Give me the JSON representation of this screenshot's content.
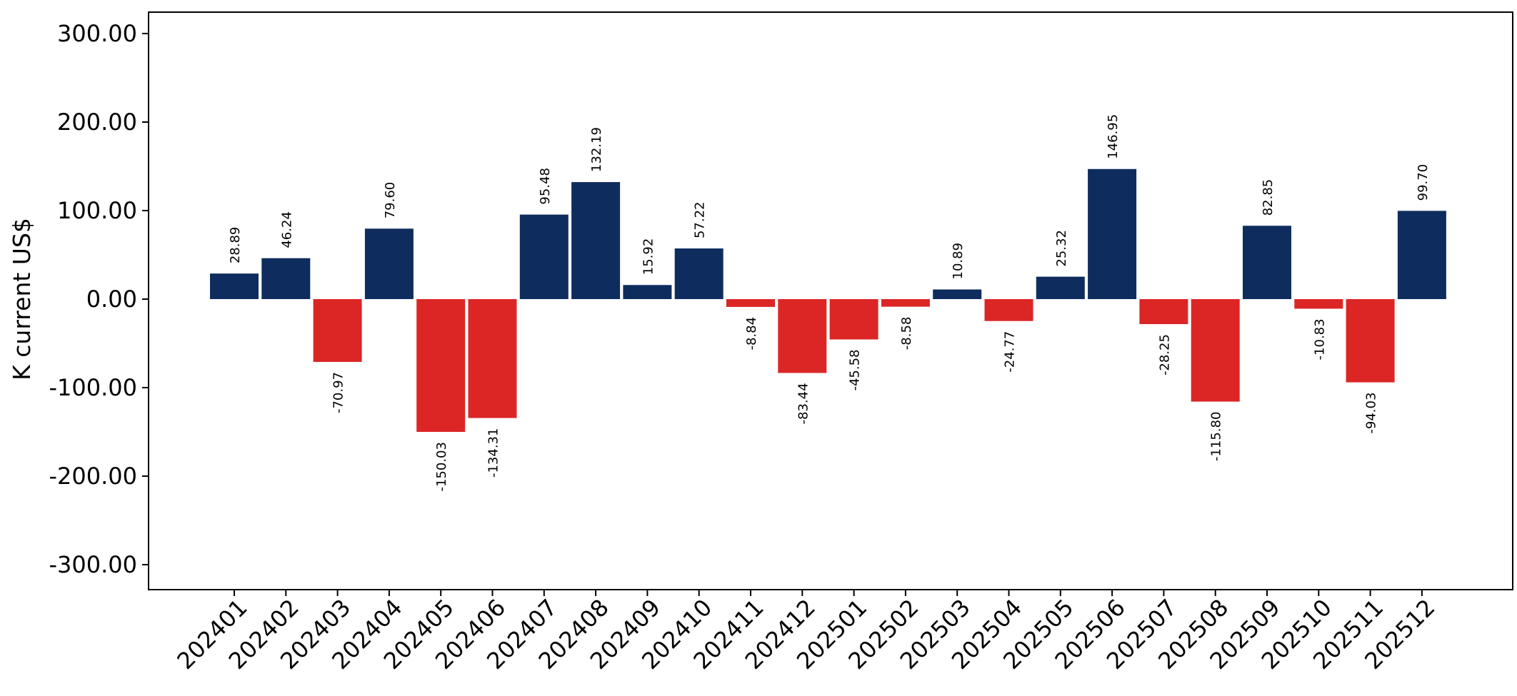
{
  "chart_data": {
    "type": "bar",
    "title": "",
    "xlabel": "",
    "ylabel": "K current US$",
    "ylim": [
      -326,
      326
    ],
    "yticks": [
      300,
      200,
      100,
      0,
      -100,
      -200,
      -300
    ],
    "ytick_labels": [
      "300.00",
      "200.00",
      "100.00",
      "0.00",
      "-100.00",
      "-200.00",
      "-300.00"
    ],
    "categories": [
      "202401",
      "202402",
      "202403",
      "202404",
      "202405",
      "202406",
      "202407",
      "202408",
      "202409",
      "202410",
      "202411",
      "202412",
      "202501",
      "202502",
      "202503",
      "202504",
      "202505",
      "202506",
      "202507",
      "202508",
      "202509",
      "202510",
      "202511",
      "202512"
    ],
    "values": [
      28.89,
      46.24,
      -70.97,
      79.6,
      -150.03,
      -134.31,
      95.48,
      132.19,
      15.92,
      57.22,
      -8.84,
      -83.44,
      -45.58,
      -8.58,
      10.89,
      -24.77,
      25.32,
      146.95,
      -28.25,
      -115.8,
      82.85,
      -10.83,
      -94.03,
      99.7
    ],
    "value_labels": [
      "28.89",
      "46.24",
      "-70.97",
      "79.60",
      "-150.03",
      "-134.31",
      "95.48",
      "132.19",
      "15.92",
      "57.22",
      "-8.84",
      "-83.44",
      "-45.58",
      "-8.58",
      "10.89",
      "-24.77",
      "25.32",
      "146.95",
      "-28.25",
      "-115.80",
      "82.85",
      "-10.83",
      "-94.03",
      "99.70"
    ],
    "colors": {
      "positive": "#0e2d5e",
      "negative": "#dc2626"
    },
    "grid": false,
    "legend": "none"
  }
}
